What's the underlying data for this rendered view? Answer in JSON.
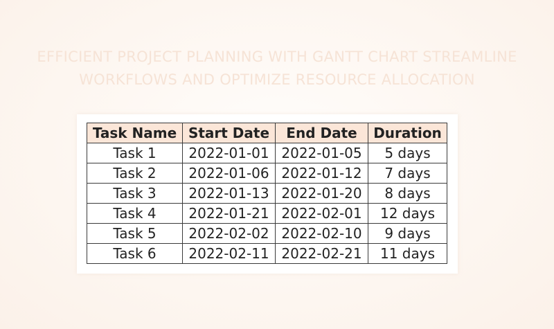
{
  "title_lines": [
    "EFFICIENT PROJECT PLANNING WITH GANTT CHART STREAMLINE",
    "WORKFLOWS AND OPTIMIZE RESOURCE ALLOCATION"
  ],
  "table": {
    "headers": [
      "Task Name",
      "Start Date",
      "End Date",
      "Duration"
    ],
    "rows": [
      [
        "Task 1",
        "2022-01-01",
        "2022-01-05",
        "5 days"
      ],
      [
        "Task 2",
        "2022-01-06",
        "2022-01-12",
        "7 days"
      ],
      [
        "Task 3",
        "2022-01-13",
        "2022-01-20",
        "8 days"
      ],
      [
        "Task 4",
        "2022-01-21",
        "2022-02-01",
        "12 days"
      ],
      [
        "Task 5",
        "2022-02-02",
        "2022-02-10",
        "9 days"
      ],
      [
        "Task 6",
        "2022-02-11",
        "2022-02-21",
        "11 days"
      ]
    ]
  },
  "colors": {
    "header_bg": "#fbe6d8",
    "title_text": "#f6e3d6",
    "border": "#3a3a3a"
  }
}
